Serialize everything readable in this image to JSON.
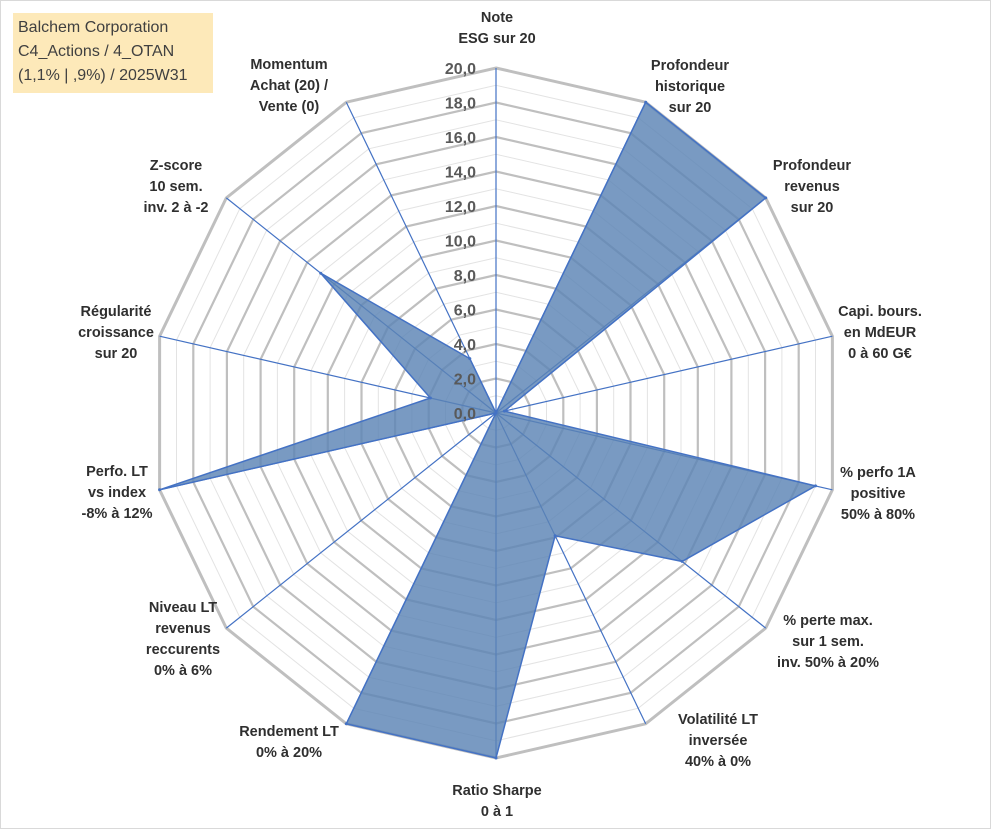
{
  "title_box": {
    "line1": "Balchem Corporation",
    "line2": "C4_Actions / 4_OTAN",
    "line3": "(1,1% | ,9%) / 2025W31"
  },
  "colors": {
    "fill": "#5b84b5",
    "stroke": "#4472c4",
    "grid": "#bfbfbf",
    "spoke": "#4472c4",
    "title_bg": "#fde9b9"
  },
  "chart_data": {
    "type": "radar",
    "rlim": [
      0,
      20
    ],
    "ticks": [
      "0,0",
      "2,0",
      "4,0",
      "6,0",
      "8,0",
      "10,0",
      "12,0",
      "14,0",
      "16,0",
      "18,0",
      "20,0"
    ],
    "axes": [
      {
        "label": [
          "Note",
          "ESG sur 20"
        ],
        "value": 0
      },
      {
        "label": [
          "Profondeur",
          "historique",
          "sur 20"
        ],
        "value": 20
      },
      {
        "label": [
          "Profondeur",
          "revenus",
          "sur 20"
        ],
        "value": 20
      },
      {
        "label": [
          "Capi. bours.",
          "en MdEUR",
          "0 à 60 G€"
        ],
        "value": 0.5
      },
      {
        "label": [
          "% perfo 1A",
          "positive",
          "50% à 80%"
        ],
        "value": 19
      },
      {
        "label": [
          "% perte max.",
          "sur 1 sem.",
          "inv. 50% à 20%"
        ],
        "value": 13.8
      },
      {
        "label": [
          "Volatilité LT",
          "inversée",
          "40% à 0%"
        ],
        "value": 7.9
      },
      {
        "label": [
          "Ratio Sharpe",
          "0 à 1"
        ],
        "value": 20
      },
      {
        "label": [
          "Rendement LT",
          "0% à 20%"
        ],
        "value": 20
      },
      {
        "label": [
          "Niveau LT",
          "revenus",
          "reccurents",
          "0% à 6%"
        ],
        "value": 0
      },
      {
        "label": [
          "Perfo. LT",
          "vs index",
          "-8% à 12%"
        ],
        "value": 20
      },
      {
        "label": [
          "Régularité",
          "croissance",
          "sur 20"
        ],
        "value": 3.9
      },
      {
        "label": [
          "Z-score",
          "10 sem.",
          "inv. 2 à -2"
        ],
        "value": 13
      },
      {
        "label": [
          "Momentum",
          "Achat (20) /",
          "Vente (0)"
        ],
        "value": 3.5
      }
    ]
  }
}
